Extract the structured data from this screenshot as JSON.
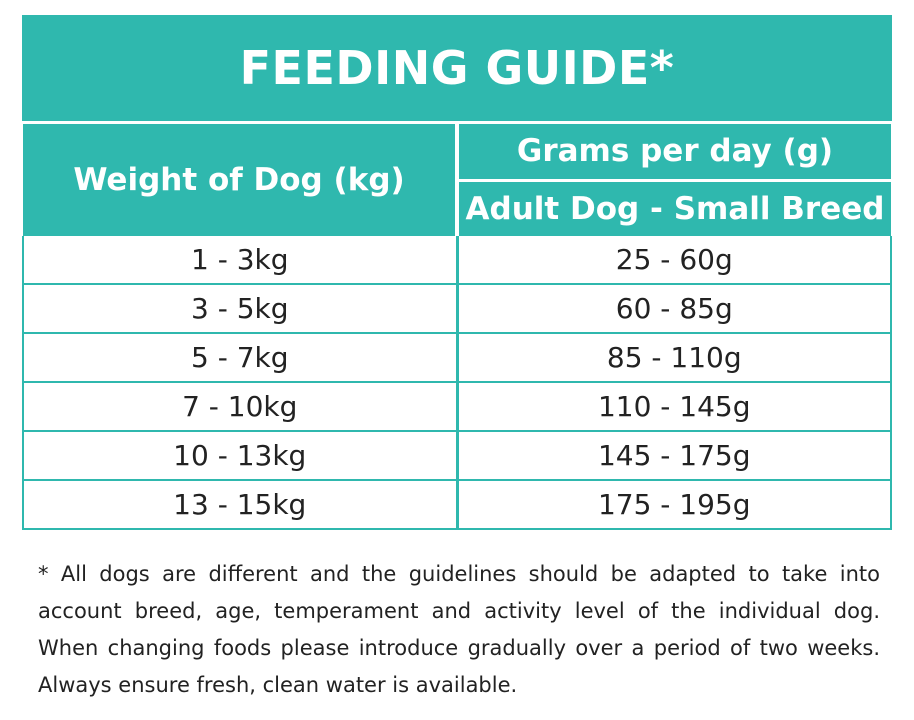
{
  "title": "FEEDING GUIDE*",
  "table": {
    "weight_header": "Weight of Dog (kg)",
    "grams_header": "Grams per day (g)",
    "breed_header": "Adult Dog - Small Breed",
    "rows": [
      {
        "weight": "1 - 3kg",
        "grams": "25 - 60g"
      },
      {
        "weight": "3 - 5kg",
        "grams": "60 - 85g"
      },
      {
        "weight": "5 - 7kg",
        "grams": "85 - 110g"
      },
      {
        "weight": "7 - 10kg",
        "grams": "110 - 145g"
      },
      {
        "weight": "10 - 13kg",
        "grams": "145 - 175g"
      },
      {
        "weight": "13 - 15kg",
        "grams": "175 - 195g"
      }
    ]
  },
  "footnote": "* All dogs are different and the guidelines should be adapted to take into account breed, age, temperament and activity level of the individual dog. When changing foods please introduce gradually over a period of two weeks. Always ensure fresh, clean water is available.",
  "colors": {
    "accent": "#2fb8ae",
    "text": "#222222",
    "background": "#ffffff"
  }
}
